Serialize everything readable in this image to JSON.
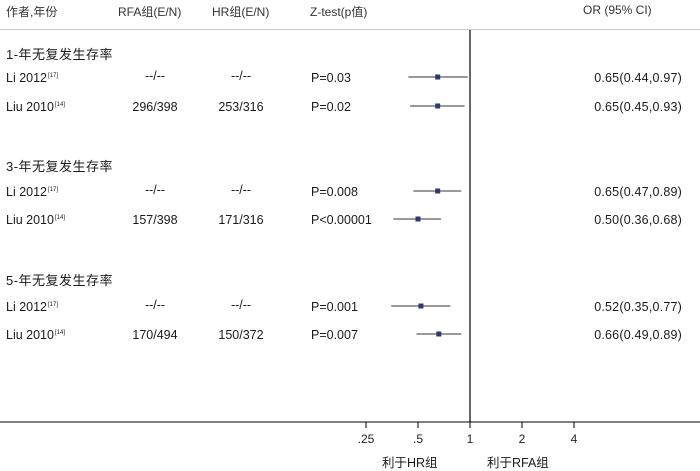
{
  "header": {
    "author_year": "作者,年份",
    "rfa": "RFA组(E/N)",
    "hr": "HR组(E/N)",
    "ztest": "Z-test(p值)",
    "or": "OR (95% CI)"
  },
  "sections": [
    {
      "title": "1-年无复发生存率",
      "rows": [
        {
          "study": "Li 2012",
          "ref": "[17]",
          "rfa": "--/--",
          "hr": "--/--",
          "p": "P=0.03",
          "or_text": "0.65(0.44,0.97)"
        },
        {
          "study": "Liu 2010",
          "ref": "[14]",
          "rfa": "296/398",
          "hr": "253/316",
          "p": "P=0.02",
          "or_text": "0.65(0.45,0.93)"
        }
      ]
    },
    {
      "title": "3-年无复发生存率",
      "rows": [
        {
          "study": "Li 2012",
          "ref": "[17]",
          "rfa": "--/--",
          "hr": "--/--",
          "p": "P=0.008",
          "or_text": "0.65(0.47,0.89)"
        },
        {
          "study": "Liu 2010",
          "ref": "[14]",
          "rfa": "157/398",
          "hr": "171/316",
          "p": "P<0.00001",
          "or_text": "0.50(0.36,0.68)"
        }
      ]
    },
    {
      "title": "5-年无复发生存率",
      "rows": [
        {
          "study": "Li 2012",
          "ref": "[17]",
          "rfa": "--/--",
          "hr": "--/--",
          "p": "P=0.001",
          "or_text": "0.52(0.35,0.77)"
        },
        {
          "study": "Liu 2010",
          "ref": "[14]",
          "rfa": "170/494",
          "hr": "150/372",
          "p": "P=0.007",
          "or_text": "0.66(0.49,0.89)"
        }
      ]
    }
  ],
  "axis": {
    "tick_labels": [
      ".25",
      ".5",
      "1",
      "2",
      "4"
    ],
    "favours_left": "利于HR组",
    "favours_right": "利于RFA组"
  },
  "chart_data": {
    "type": "forest",
    "x_scale": "log",
    "xlim": [
      0.25,
      4
    ],
    "x_ticks": [
      0.25,
      0.5,
      1,
      2,
      4
    ],
    "reference_line": 1,
    "points": [
      {
        "or": 0.65,
        "lo": 0.44,
        "hi": 0.97
      },
      {
        "or": 0.65,
        "lo": 0.45,
        "hi": 0.93
      },
      {
        "or": 0.65,
        "lo": 0.47,
        "hi": 0.89
      },
      {
        "or": 0.5,
        "lo": 0.36,
        "hi": 0.68
      },
      {
        "or": 0.52,
        "lo": 0.35,
        "hi": 0.77
      },
      {
        "or": 0.66,
        "lo": 0.49,
        "hi": 0.89
      }
    ],
    "colors": {
      "marker": "#2e3a6e",
      "ci_line": "#333333"
    }
  }
}
